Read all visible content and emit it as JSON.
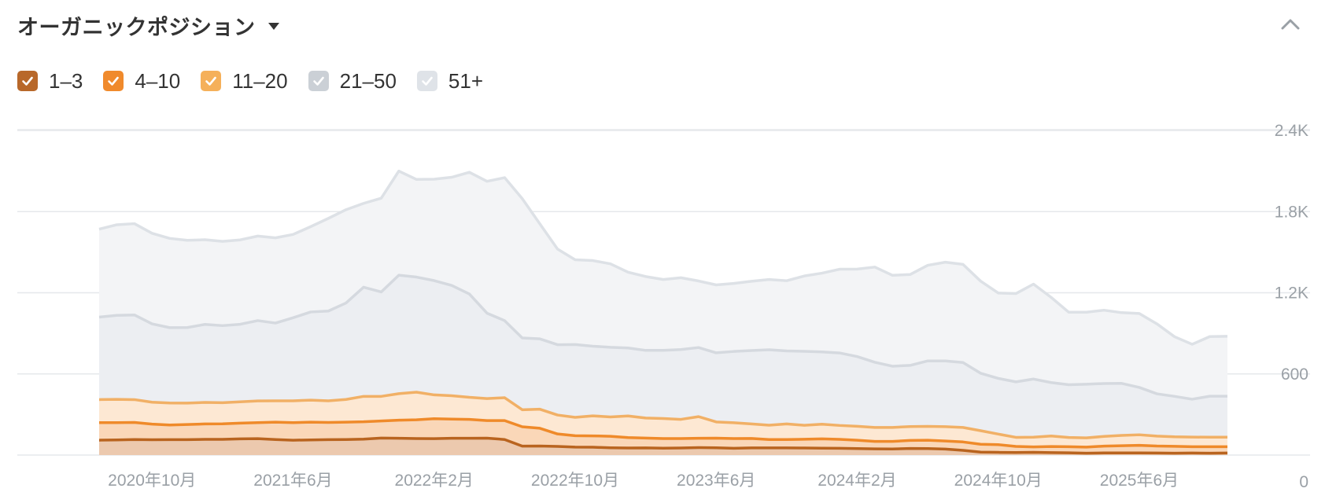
{
  "header": {
    "title": "オーガニックポジション"
  },
  "legend": {
    "items": [
      {
        "label": "1–3",
        "color": "#b8682a"
      },
      {
        "label": "4–10",
        "color": "#f08a2c"
      },
      {
        "label": "11–20",
        "color": "#f5b05a"
      },
      {
        "label": "21–50",
        "color": "#cbd0d6"
      },
      {
        "label": "51+",
        "color": "#dfe3e8"
      }
    ]
  },
  "chart_data": {
    "type": "area",
    "stacked": true,
    "grid": true,
    "y_axis_side": "right",
    "ylim": [
      0,
      2400
    ],
    "y_ticks": [
      0,
      600,
      1200,
      1800,
      2400
    ],
    "y_tick_labels": [
      "0",
      "600",
      "1.2K",
      "1.8K",
      "2.4K"
    ],
    "x_ticks": [
      "2020-10",
      "2021-06",
      "2022-02",
      "2022-10",
      "2023-06",
      "2024-02",
      "2024-10",
      "2025-06"
    ],
    "x_tick_labels": [
      "2020年10月",
      "2021年6月",
      "2022年2月",
      "2022年10月",
      "2023年6月",
      "2024年2月",
      "2024年10月",
      "2025年6月"
    ],
    "x_start": "2020-07",
    "x_step_months": 1,
    "series": [
      {
        "name": "1–3",
        "color": "#b8682a",
        "values": [
          110,
          112,
          115,
          113,
          114,
          114,
          116,
          116,
          120,
          121,
          115,
          110,
          112,
          114,
          115,
          118,
          126,
          124,
          122,
          121,
          124,
          124,
          125,
          115,
          66,
          67,
          64,
          59,
          58,
          54,
          52,
          53,
          51,
          52,
          55,
          54,
          50,
          53,
          53,
          53,
          52,
          51,
          50,
          48,
          46,
          45,
          49,
          48,
          44,
          35,
          22,
          20,
          19,
          20,
          18,
          17,
          14,
          16,
          16,
          16,
          15,
          14,
          15,
          14,
          15
        ]
      },
      {
        "name": "4–10",
        "color": "#f08a2c",
        "values": [
          130,
          128,
          126,
          116,
          108,
          112,
          114,
          115,
          116,
          119,
          128,
          130,
          131,
          127,
          128,
          128,
          126,
          134,
          139,
          148,
          142,
          140,
          130,
          140,
          143,
          131,
          92,
          84,
          84,
          85,
          77,
          73,
          71,
          70,
          69,
          71,
          72,
          70,
          62,
          62,
          65,
          69,
          66,
          62,
          55,
          56,
          59,
          62,
          60,
          62,
          58,
          57,
          45,
          40,
          45,
          45,
          45,
          50,
          53,
          56,
          52,
          51,
          47,
          48,
          47
        ]
      },
      {
        "name": "11–20",
        "color": "#f5b05a",
        "values": [
          170,
          172,
          169,
          162,
          163,
          158,
          159,
          156,
          158,
          160,
          158,
          161,
          163,
          160,
          168,
          188,
          182,
          196,
          204,
          176,
          173,
          163,
          163,
          169,
          126,
          141,
          140,
          136,
          148,
          143,
          160,
          148,
          148,
          142,
          160,
          120,
          117,
          107,
          106,
          115,
          103,
          108,
          103,
          103,
          103,
          103,
          103,
          102,
          106,
          107,
          100,
          78,
          67,
          72,
          78,
          68,
          68,
          72,
          76,
          78,
          73,
          70,
          71,
          70,
          70
        ]
      },
      {
        "name": "21–50",
        "color": "#cbd0d6",
        "values": [
          610,
          621,
          626,
          579,
          557,
          559,
          577,
          570,
          573,
          594,
          575,
          614,
          652,
          664,
          713,
          807,
          772,
          876,
          851,
          845,
          815,
          764,
          631,
          570,
          531,
          520,
          520,
          538,
          515,
          515,
          503,
          500,
          504,
          516,
          511,
          511,
          527,
          543,
          558,
          540,
          547,
          535,
          536,
          515,
          482,
          453,
          452,
          484,
          486,
          480,
          425,
          412,
          410,
          430,
          395,
          390,
          397,
          391,
          385,
          350,
          313,
          299,
          280,
          303,
          303
        ]
      },
      {
        "name": "51+",
        "color": "#dfe3e8",
        "values": [
          650,
          670,
          675,
          670,
          660,
          645,
          626,
          623,
          624,
          625,
          630,
          616,
          631,
          685,
          690,
          620,
          693,
          770,
          722,
          750,
          800,
          900,
          975,
          1057,
          1030,
          850,
          707,
          627,
          633,
          617,
          560,
          546,
          524,
          531,
          492,
          502,
          503,
          512,
          519,
          519,
          557,
          582,
          619,
          647,
          704,
          672,
          672,
          707,
          730,
          726,
          681,
          631,
          653,
          702,
          630,
          536,
          532,
          542,
          523,
          547,
          517,
          441,
          406,
          441,
          443
        ]
      }
    ]
  }
}
